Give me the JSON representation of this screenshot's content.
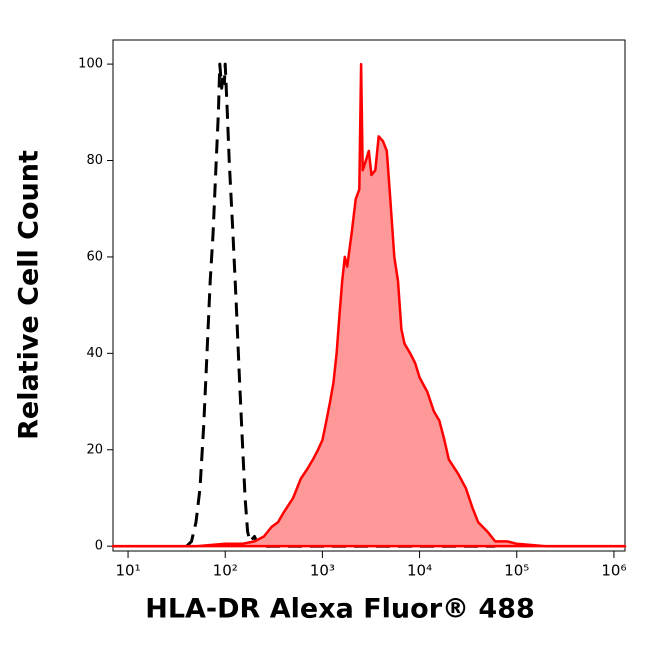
{
  "chart_data": {
    "type": "histogram-overlay",
    "xlabel": "HLA-DR Alexa Fluor® 488",
    "ylabel": "Relative Cell Count",
    "xscale": "log",
    "xlim": [
      7,
      1300000
    ],
    "ylim": [
      -1,
      105
    ],
    "xticks": [
      {
        "value": 10,
        "label": "10¹"
      },
      {
        "value": 100,
        "label": "10²"
      },
      {
        "value": 1000,
        "label": "10³"
      },
      {
        "value": 10000,
        "label": "10⁴"
      },
      {
        "value": 100000,
        "label": "10⁵"
      },
      {
        "value": 1000000,
        "label": "10⁶"
      }
    ],
    "yticks": [
      0,
      20,
      40,
      60,
      80,
      100
    ],
    "series": [
      {
        "color": "#000000",
        "dash": true,
        "x": [
          40,
          45,
          50,
          55,
          60,
          65,
          70,
          75,
          80,
          85,
          88,
          92,
          95,
          98,
          100,
          105,
          110,
          120,
          130,
          140,
          150,
          160,
          170,
          180,
          200,
          220,
          500,
          1000,
          5000,
          20000,
          60000
        ],
        "values": [
          0,
          1,
          5,
          12,
          25,
          40,
          55,
          65,
          78,
          90,
          100,
          95,
          98,
          96,
          100,
          90,
          80,
          65,
          50,
          35,
          22,
          10,
          3,
          1,
          2,
          0,
          0,
          0,
          0,
          0,
          0
        ]
      },
      {
        "color": "#ff0000",
        "fill": "#ff9999",
        "x": [
          7,
          50,
          100,
          150,
          200,
          250,
          300,
          350,
          400,
          500,
          600,
          700,
          800,
          900,
          1000,
          1100,
          1200,
          1300,
          1400,
          1500,
          1600,
          1700,
          1800,
          2000,
          2200,
          2400,
          2500,
          2600,
          2800,
          3000,
          3200,
          3500,
          3800,
          4200,
          4600,
          5000,
          5500,
          6000,
          6500,
          7000,
          8000,
          9000,
          10000,
          12000,
          14000,
          16000,
          18000,
          20000,
          25000,
          30000,
          35000,
          40000,
          50000,
          60000,
          80000,
          100000,
          200000,
          1300000
        ],
        "values": [
          0,
          0,
          0.5,
          0.5,
          1,
          2,
          4,
          5,
          7,
          10,
          14,
          16,
          18,
          20,
          22,
          26,
          30,
          34,
          40,
          48,
          55,
          60,
          58,
          65,
          72,
          74,
          100,
          78,
          80,
          82,
          77,
          78,
          85,
          84,
          82,
          72,
          60,
          55,
          45,
          42,
          40,
          38,
          35,
          32,
          28,
          26,
          22,
          18,
          15,
          12,
          8,
          5,
          3,
          1,
          1,
          0.5,
          0,
          0
        ]
      }
    ]
  }
}
